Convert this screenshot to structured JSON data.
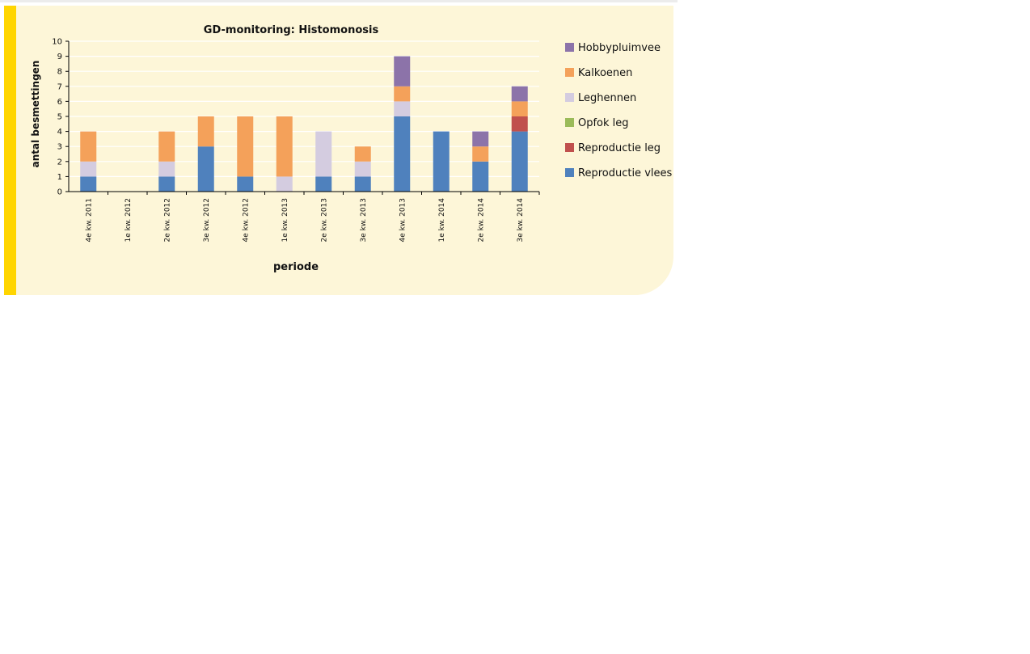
{
  "chart_data": {
    "type": "bar",
    "stacked": true,
    "title": "GD-monitoring: Histomonosis",
    "xlabel": "periode",
    "ylabel": "antal besmettingen",
    "ylim": [
      0,
      10
    ],
    "yticks": [
      0,
      1,
      2,
      3,
      4,
      5,
      6,
      7,
      8,
      9,
      10
    ],
    "grid": true,
    "legend_position": "right",
    "categories": [
      "4e kw. 2011",
      "1e kw. 2012",
      "2e kw. 2012",
      "3e kw. 2012",
      "4e kw. 2012",
      "1e kw. 2013",
      "2e kw. 2013",
      "3e kw. 2013",
      "4e kw. 2013",
      "1e kw. 2014",
      "2e kw. 2014",
      "3e kw. 2014"
    ],
    "series": [
      {
        "name": "Reproductie vlees",
        "color": "#4f81bd",
        "values": [
          1,
          0,
          1,
          3,
          1,
          0,
          1,
          1,
          5,
          4,
          2,
          4
        ]
      },
      {
        "name": "Reproductie leg",
        "color": "#c0504d",
        "values": [
          0,
          0,
          0,
          0,
          0,
          0,
          0,
          0,
          0,
          0,
          0,
          1
        ]
      },
      {
        "name": "Opfok leg",
        "color": "#9bbb59",
        "values": [
          0,
          0,
          0,
          0,
          0,
          0,
          0,
          0,
          0,
          0,
          0,
          0
        ]
      },
      {
        "name": "Leghennen",
        "color": "#d4cce0",
        "values": [
          1,
          0,
          1,
          0,
          0,
          1,
          3,
          1,
          1,
          0,
          0,
          0
        ]
      },
      {
        "name": "Kalkoenen",
        "color": "#f4a15a",
        "values": [
          2,
          0,
          2,
          2,
          4,
          4,
          0,
          1,
          1,
          0,
          1,
          1
        ]
      },
      {
        "name": "Hobbypluimvee",
        "color": "#8c73a9",
        "values": [
          0,
          0,
          0,
          0,
          0,
          0,
          0,
          0,
          2,
          0,
          1,
          1
        ]
      }
    ],
    "legend_order": [
      "Hobbypluimvee",
      "Kalkoenen",
      "Leghennen",
      "Opfok leg",
      "Reproductie leg",
      "Reproductie vlees"
    ]
  }
}
